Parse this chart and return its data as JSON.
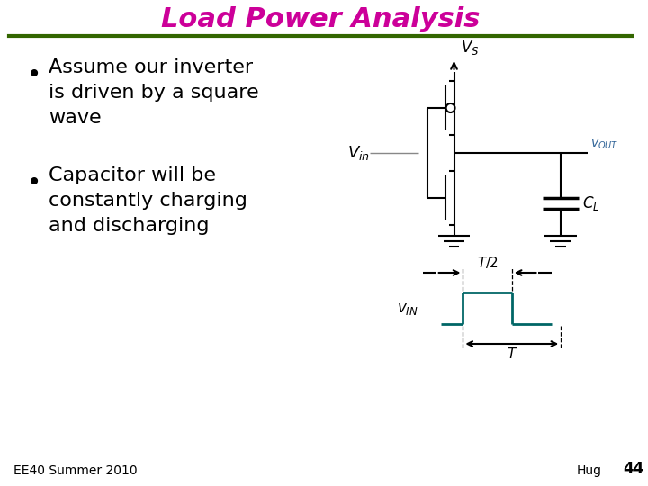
{
  "title": "Load Power Analysis",
  "title_color": "#CC0099",
  "title_fontsize": 22,
  "separator_color": "#336600",
  "separator_linewidth": 3,
  "background_color": "#FFFFFF",
  "bullet_points": [
    "Assume our inverter\nis driven by a square\nwave",
    "Capacitor will be\nconstantly charging\nand discharging"
  ],
  "bullet_fontsize": 16,
  "footer_left": "EE40 Summer 2010",
  "footer_right_text": "Hug",
  "footer_page": "44",
  "footer_fontsize": 10,
  "circuit_color": "#000000",
  "wave_color": "#006666",
  "vin_label_color": "#555555",
  "vout_label_color": "#336699"
}
